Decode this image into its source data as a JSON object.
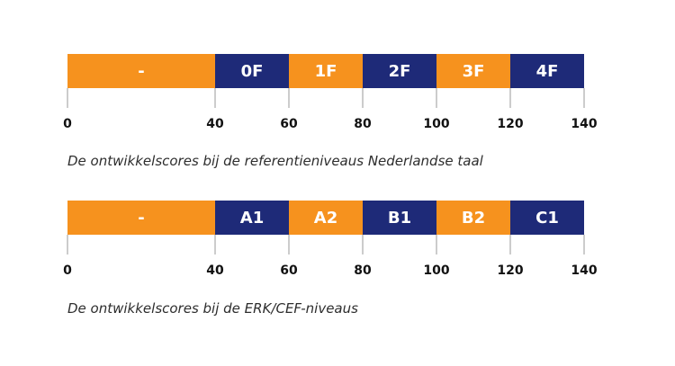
{
  "colors": {
    "orange": "#F6921E",
    "navy": "#1E2A78",
    "axis": "#999999"
  },
  "scales": [
    {
      "caption": "De ontwikkelscores bij de referentieniveaus Nederlandse taal",
      "segments": [
        {
          "label": "-",
          "from": 0,
          "to": 40,
          "color": "orange"
        },
        {
          "label": "0F",
          "from": 40,
          "to": 60,
          "color": "navy"
        },
        {
          "label": "1F",
          "from": 60,
          "to": 80,
          "color": "orange"
        },
        {
          "label": "2F",
          "from": 80,
          "to": 100,
          "color": "navy"
        },
        {
          "label": "3F",
          "from": 100,
          "to": 120,
          "color": "orange"
        },
        {
          "label": "4F",
          "from": 120,
          "to": 140,
          "color": "navy"
        }
      ],
      "ticks": [
        "0",
        "40",
        "60",
        "80",
        "100",
        "120",
        "140"
      ],
      "range": [
        0,
        140
      ]
    },
    {
      "caption": "De ontwikkelscores bij de ERK/CEF-niveaus",
      "segments": [
        {
          "label": "-",
          "from": 0,
          "to": 40,
          "color": "orange"
        },
        {
          "label": "A1",
          "from": 40,
          "to": 60,
          "color": "navy"
        },
        {
          "label": "A2",
          "from": 60,
          "to": 80,
          "color": "orange"
        },
        {
          "label": "B1",
          "from": 80,
          "to": 100,
          "color": "navy"
        },
        {
          "label": "B2",
          "from": 100,
          "to": 120,
          "color": "orange"
        },
        {
          "label": "C1",
          "from": 120,
          "to": 140,
          "color": "navy"
        }
      ],
      "ticks": [
        "0",
        "40",
        "60",
        "80",
        "100",
        "120",
        "140"
      ],
      "range": [
        0,
        140
      ]
    }
  ]
}
